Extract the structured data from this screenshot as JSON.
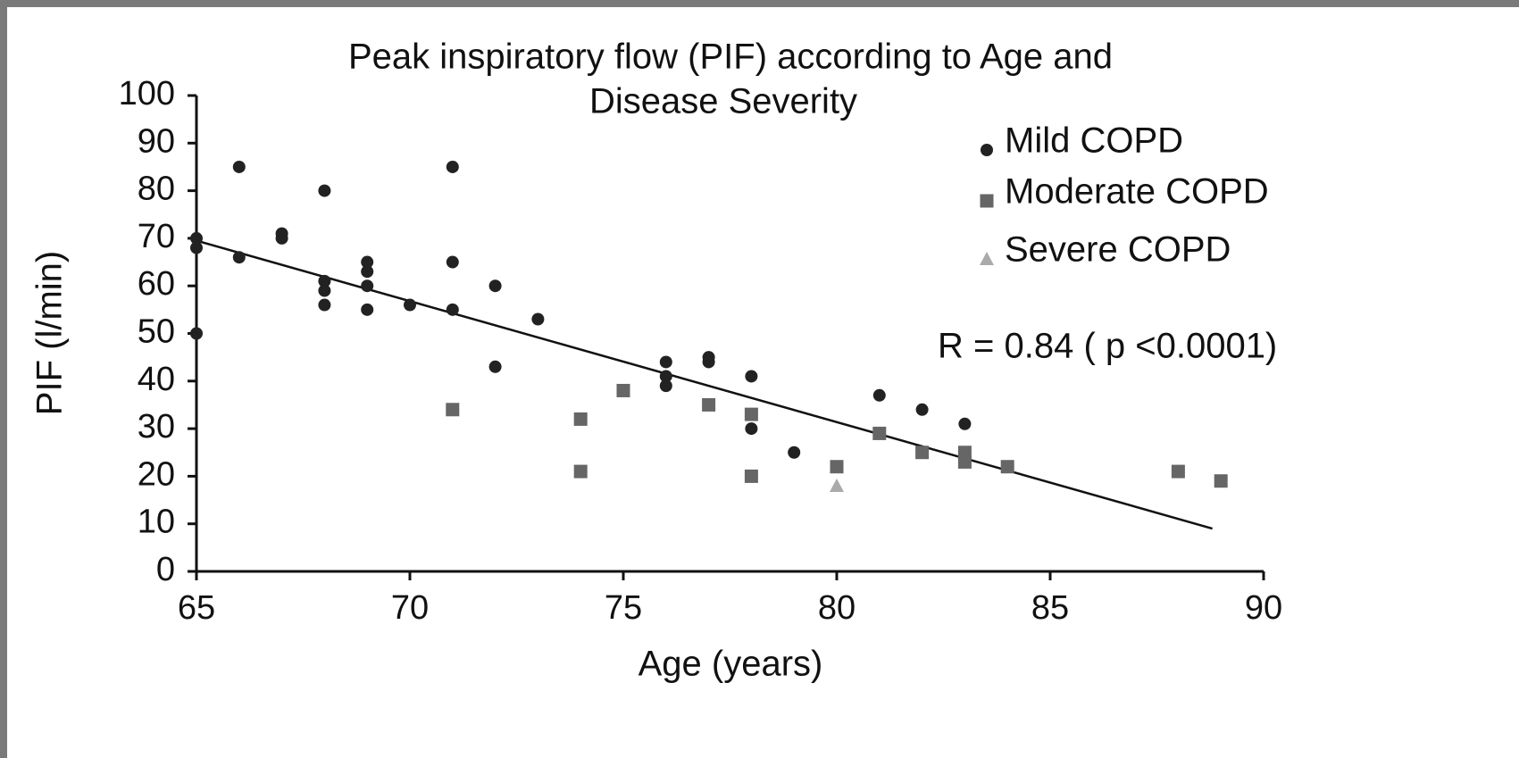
{
  "chart_data": {
    "type": "scatter",
    "title": [
      "Peak inspiratory flow (PIF) according to Age and",
      "Disease Severity"
    ],
    "x_label": "Age (years)",
    "y_label": "PIF (l/min)",
    "annotation": "R = 0.84 ( p <0.0001)",
    "xlim": [
      65,
      90
    ],
    "xticks": [
      65,
      70,
      75,
      80,
      85,
      90
    ],
    "ylim": [
      0,
      100
    ],
    "yticks": [
      0,
      10,
      20,
      30,
      40,
      50,
      60,
      70,
      80,
      90,
      100
    ],
    "series": [
      {
        "name": "Mild COPD",
        "color": "#222222",
        "marker": "circle",
        "x": [
          65,
          65,
          65,
          66,
          66,
          67,
          67,
          68,
          68,
          68,
          68,
          69,
          69,
          69,
          69,
          70,
          71,
          71,
          71,
          72,
          72,
          73,
          76,
          76,
          76,
          77,
          77,
          78,
          78,
          79,
          81,
          82,
          83
        ],
        "values": [
          70,
          68,
          50,
          85,
          66,
          71,
          70,
          80,
          61,
          59,
          56,
          65,
          63,
          60,
          55,
          56,
          85,
          65,
          55,
          60,
          43,
          53,
          44,
          41,
          39,
          45,
          44,
          41,
          30,
          25,
          37,
          34,
          31
        ]
      },
      {
        "name": "Moderate COPD",
        "color": "#666666",
        "marker": "square",
        "x": [
          71,
          74,
          74,
          75,
          77,
          78,
          78,
          80,
          81,
          82,
          83,
          83,
          84,
          88,
          89
        ],
        "values": [
          34,
          32,
          21,
          38,
          35,
          33,
          20,
          22,
          29,
          25,
          25,
          23,
          22,
          21,
          19
        ]
      },
      {
        "name": "Severe COPD",
        "color": "#aaaaaa",
        "marker": "triangle",
        "x": [
          80
        ],
        "values": [
          18
        ]
      }
    ],
    "trendline": {
      "color": "#111111",
      "x": [
        65,
        88.8
      ],
      "values": [
        69.5,
        9
      ]
    }
  }
}
